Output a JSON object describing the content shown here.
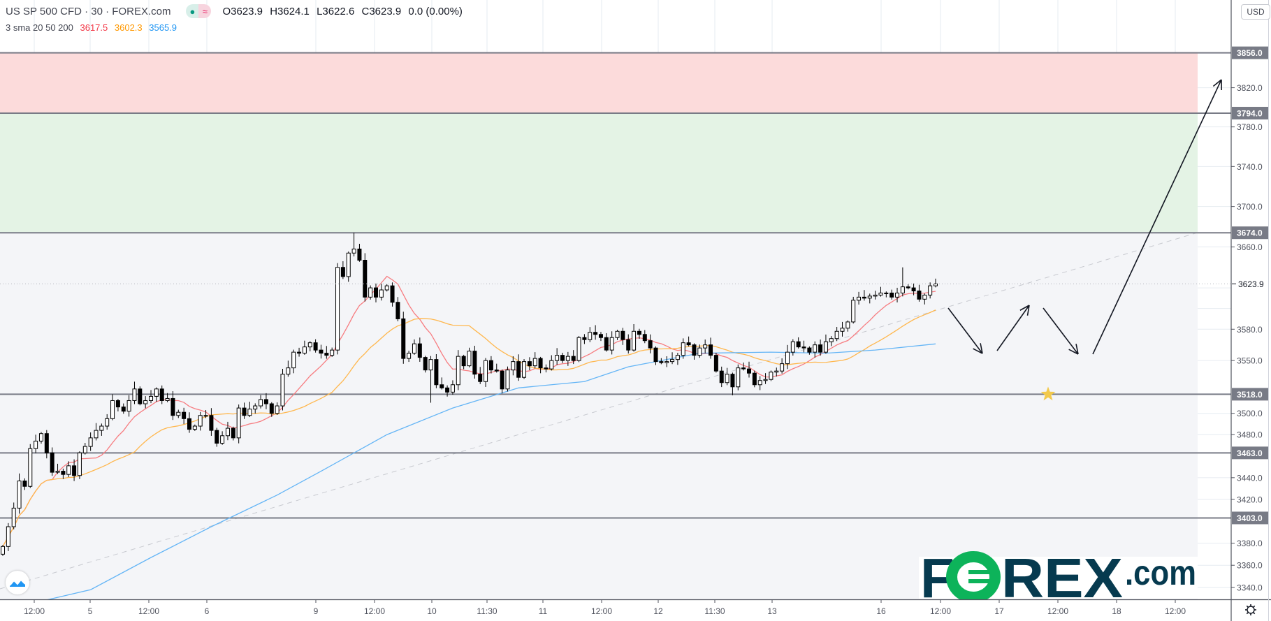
{
  "header": {
    "symbol": "US SP 500 CFD · 30 · FOREX.com",
    "status_icons": [
      "market-open-dot-icon",
      "approx-data-icon"
    ],
    "status_glyph": "≈",
    "ohlc": {
      "open": "O3623.9",
      "high": "H3624.1",
      "low": "L3622.6",
      "close": "C3623.9",
      "change": "0.0 (0.00%)"
    }
  },
  "indicator": {
    "name": "3 sma 20 50 200",
    "sma20_value": "3617.5",
    "sma50_value": "3602.3",
    "sma200_value": "3565.9",
    "colors": {
      "sma20": "#f23645",
      "sma50": "#ff9800",
      "sma200": "#2196f3"
    }
  },
  "price_axis": {
    "currency": "USD",
    "current_price": "3623.9",
    "ticks": [
      "3820.0",
      "3780.0",
      "3740.0",
      "3700.0",
      "3660.0",
      "3580.0",
      "3550.0",
      "3500.0",
      "3480.0",
      "3440.0",
      "3420.0",
      "3380.0",
      "3360.0",
      "3340.0"
    ],
    "level_labels": [
      "3856.0",
      "3794.0",
      "3674.0",
      "3518.0",
      "3463.0",
      "3403.0"
    ]
  },
  "time_axis": {
    "ticks": [
      "12:00",
      "5",
      "12:00",
      "6",
      "9",
      "12:00",
      "10",
      "11:30",
      "11",
      "12:00",
      "12",
      "11:30",
      "13",
      "16",
      "12:00",
      "17",
      "12:00",
      "18",
      "12:00"
    ]
  },
  "logo": {
    "part1": "F",
    "part2": "O",
    "part3": "REX",
    "part4": ".com"
  },
  "chart_data": {
    "type": "candlestick",
    "symbol": "US SP 500 CFD",
    "interval": "30",
    "price_scale": "log",
    "ylim": [
      3325,
      3905
    ],
    "grid": true,
    "candle_colors": {
      "up": "#ffffff",
      "down": "#000000",
      "outline": "#000000"
    },
    "first_open": 3370,
    "closes": [
      3377,
      3395,
      3412,
      3437,
      3432,
      3467,
      3474,
      3481,
      3463,
      3445,
      3446,
      3443,
      3451,
      3442,
      3463,
      3469,
      3477,
      3484,
      3488,
      3495,
      3512,
      3506,
      3502,
      3512,
      3523,
      3509,
      3512,
      3516,
      3523,
      3512,
      3514,
      3498,
      3501,
      3495,
      3485,
      3488,
      3498,
      3498,
      3484,
      3472,
      3479,
      3486,
      3477,
      3505,
      3498,
      3504,
      3507,
      3513,
      3509,
      3500,
      3507,
      3537,
      3543,
      3558,
      3557,
      3563,
      3567,
      3560,
      3557,
      3555,
      3560,
      3640,
      3631,
      3654,
      3658,
      3647,
      3611,
      3620,
      3611,
      3618,
      3622,
      3606,
      3590,
      3552,
      3557,
      3566,
      3553,
      3541,
      3551,
      3527,
      3524,
      3520,
      3527,
      3554,
      3545,
      3559,
      3537,
      3530,
      3550,
      3541,
      3540,
      3523,
      3541,
      3549,
      3534,
      3549,
      3545,
      3552,
      3543,
      3542,
      3550,
      3555,
      3550,
      3554,
      3550,
      3572,
      3570,
      3577,
      3575,
      3572,
      3560,
      3572,
      3578,
      3570,
      3560,
      3578,
      3575,
      3569,
      3562,
      3549,
      3548,
      3549,
      3551,
      3555,
      3567,
      3565,
      3555,
      3562,
      3565,
      3555,
      3540,
      3529,
      3537,
      3525,
      3543,
      3542,
      3538,
      3527,
      3531,
      3532,
      3539,
      3540,
      3547,
      3558,
      3568,
      3563,
      3562,
      3558,
      3565,
      3558,
      3568,
      3571,
      3578,
      3581,
      3587,
      3608,
      3611,
      3610,
      3612,
      3613,
      3615,
      3615,
      3611,
      3615,
      3621,
      3620,
      3617,
      3609,
      3613,
      3622,
      3623.9
    ],
    "extreme_wicks": [
      {
        "bar": 64,
        "high": 3674
      },
      {
        "bar": 164,
        "high": 3640
      },
      {
        "bar": 78,
        "low": 3510
      },
      {
        "bar": 133,
        "low": 3517
      }
    ],
    "sma": [
      {
        "name": "sma 20",
        "color": "#f77c80",
        "window_bars": 10
      },
      {
        "name": "sma 50",
        "color": "#ffb74d",
        "window_bars": 25
      },
      {
        "name": "sma 200",
        "color": "#64b5f6",
        "points": [
          [
            9,
            3330
          ],
          [
            16,
            3338
          ],
          [
            27,
            3367
          ],
          [
            38,
            3395
          ],
          [
            50,
            3424
          ],
          [
            58,
            3446
          ],
          [
            70,
            3480
          ],
          [
            82,
            3505
          ],
          [
            94,
            3524
          ],
          [
            106,
            3530
          ],
          [
            114,
            3544
          ],
          [
            127,
            3557
          ],
          [
            140,
            3558
          ],
          [
            150,
            3557
          ],
          [
            159,
            3560
          ],
          [
            170,
            3565.9
          ]
        ]
      }
    ],
    "levels": [
      3856,
      3794,
      3674,
      3518,
      3463,
      3403
    ],
    "zones": [
      {
        "from": 3794,
        "to": 3856,
        "color": "#fcdbdb"
      },
      {
        "from": 3674,
        "to": 3794,
        "color": "#e4f3e5"
      },
      {
        "from": 3325,
        "to": 3674,
        "color": "#f4f5f8"
      }
    ],
    "level_line_color": "#787b86",
    "annotation_marker": {
      "type": "star",
      "price": 3518,
      "color": "#f2c94c"
    }
  }
}
